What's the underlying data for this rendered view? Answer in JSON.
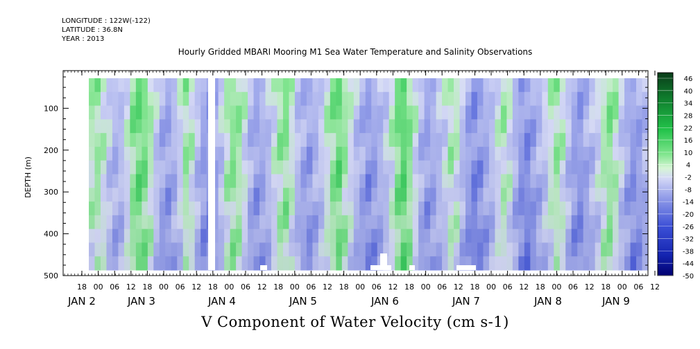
{
  "meta": {
    "longitude": "LONGITUDE : 122W(-122)",
    "latitude": "LATITUDE : 36.8N",
    "year": "YEAR : 2013"
  },
  "chart_data": {
    "type": "heatmap",
    "title": "Hourly Gridded MBARI Mooring M1 Sea Water Temperature and Salinity Observations",
    "xlabel": "V Component of Water Velocity (cm s-1)",
    "ylabel": "DEPTH (m)",
    "ylim": [
      500,
      10
    ],
    "y_ticks": [
      100,
      200,
      300,
      400,
      500
    ],
    "x_hour_ticks": [
      "18",
      "00",
      "06",
      "12",
      "18",
      "00",
      "06",
      "12",
      "18",
      "00",
      "06",
      "12",
      "18",
      "00",
      "06",
      "12",
      "18",
      "00",
      "06",
      "12",
      "18",
      "00",
      "06",
      "12",
      "18",
      "00",
      "06",
      "12",
      "18",
      "00",
      "06",
      "12",
      "18",
      "00",
      "06",
      "12"
    ],
    "x_day_labels": [
      "JAN  2",
      "JAN  3",
      "JAN  4",
      "JAN  5",
      "JAN  6",
      "JAN  7",
      "JAN  8",
      "JAN  9"
    ],
    "colorbar": {
      "labels": [
        "46",
        "40",
        "34",
        "28",
        "22",
        "16",
        "10",
        "4",
        "-2",
        "-8",
        "-14",
        "-20",
        "-26",
        "-32",
        "-38",
        "-44",
        "-50"
      ],
      "colormap": "blue-white-green",
      "low_color": "#000080",
      "high_color": "#004d1a"
    },
    "v_velocity_by_time": {
      "description_units": "cm s-1",
      "values": [
        6,
        8,
        4,
        -2,
        -6,
        -4,
        2,
        10,
        14,
        12,
        6,
        -2,
        -8,
        -10,
        -6,
        0,
        8,
        4,
        -4,
        -10,
        -12,
        -8,
        -2,
        6,
        10,
        8,
        2,
        -6,
        -10,
        -8,
        -4,
        2,
        8,
        10,
        4,
        -4,
        -8,
        -10,
        -6,
        -2,
        4,
        10,
        14,
        8,
        2,
        -4,
        -8,
        -12,
        -10,
        -6,
        -2,
        4,
        12,
        16,
        10,
        2,
        -6,
        -10,
        -8,
        -4,
        0,
        6,
        4,
        -4,
        -10,
        -14,
        -12,
        -8,
        -4,
        2,
        6,
        2,
        -6,
        -12,
        -14,
        -10,
        -6,
        -2,
        4,
        8,
        4,
        -4,
        -10,
        -12,
        -8,
        -4,
        0,
        6,
        10,
        6,
        -2,
        -8,
        -12,
        -10,
        -6
      ]
    }
  }
}
